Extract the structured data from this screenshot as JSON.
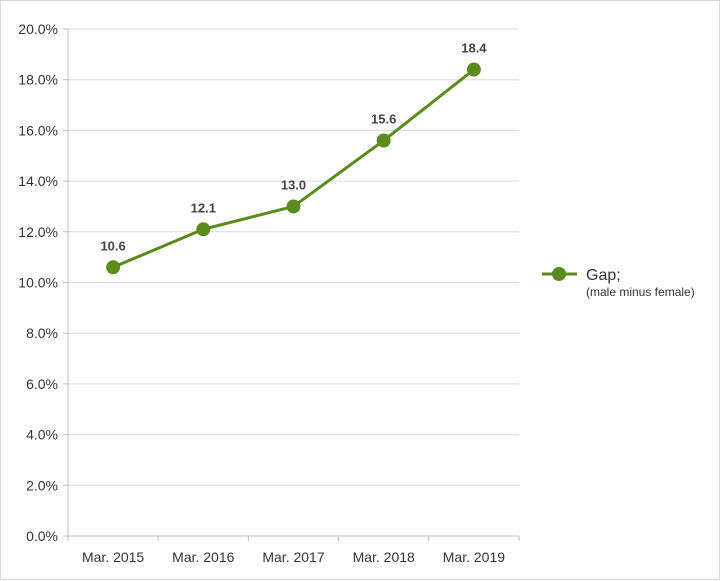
{
  "chart_data": {
    "type": "line",
    "categories": [
      "Mar. 2015",
      "Mar. 2016",
      "Mar. 2017",
      "Mar. 2018",
      "Mar. 2019"
    ],
    "series": [
      {
        "name": "Gap;",
        "name_line2": "(male minus female)",
        "values": [
          10.6,
          12.1,
          13.0,
          15.6,
          18.4
        ],
        "data_labels": [
          "10.6",
          "12.1",
          "13.0",
          "15.6",
          "18.4"
        ],
        "color": "#5b8a1d"
      }
    ],
    "y_ticks": [
      "0.0%",
      "2.0%",
      "4.0%",
      "6.0%",
      "8.0%",
      "10.0%",
      "12.0%",
      "14.0%",
      "16.0%",
      "18.0%",
      "20.0%"
    ],
    "ylim": [
      0,
      20
    ],
    "grid": "horizontal",
    "legend_position": "right",
    "title": "",
    "xlabel": "",
    "ylabel": ""
  }
}
